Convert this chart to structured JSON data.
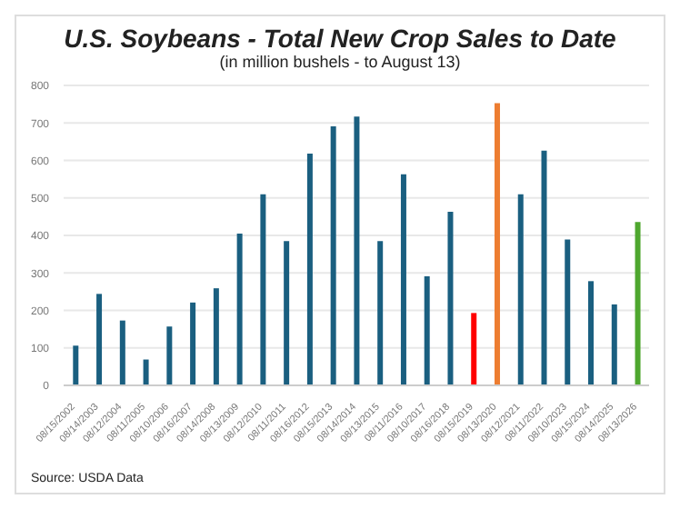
{
  "chart_data": {
    "type": "bar",
    "title": "U.S. Soybeans - Total New Crop Sales to Date",
    "subtitle": "(in million bushels - to August 13)",
    "categories": [
      "08/15/2002",
      "08/14/2003",
      "08/12/2004",
      "08/11/2005",
      "08/10/2006",
      "08/16/2007",
      "08/14/2008",
      "08/13/2009",
      "08/12/2010",
      "08/11/2011",
      "08/16/2012",
      "08/15/2013",
      "08/14/2014",
      "08/13/2015",
      "08/11/2016",
      "08/10/2017",
      "08/16/2018",
      "08/15/2019",
      "08/13/2020",
      "08/12/2021",
      "08/11/2022",
      "08/10/2023",
      "08/15/2024",
      "08/14/2025",
      "08/13/2026"
    ],
    "values": [
      106,
      244,
      173,
      69,
      157,
      221,
      259,
      405,
      510,
      385,
      618,
      691,
      717,
      385,
      563,
      291,
      463,
      193,
      753,
      510,
      626,
      389,
      278,
      216,
      436
    ],
    "colors": [
      "#1a5f80",
      "#1a5f80",
      "#1a5f80",
      "#1a5f80",
      "#1a5f80",
      "#1a5f80",
      "#1a5f80",
      "#1a5f80",
      "#1a5f80",
      "#1a5f80",
      "#1a5f80",
      "#1a5f80",
      "#1a5f80",
      "#1a5f80",
      "#1a5f80",
      "#1a5f80",
      "#1a5f80",
      "#ff0000",
      "#ed7d31",
      "#1a5f80",
      "#1a5f80",
      "#1a5f80",
      "#1a5f80",
      "#1a5f80",
      "#4ea72e"
    ],
    "ylim": [
      0,
      800
    ],
    "yticks": [
      0,
      100,
      200,
      300,
      400,
      500,
      600,
      700,
      800
    ],
    "grid": "y",
    "annotations": [
      "Source: USDA Data"
    ]
  }
}
